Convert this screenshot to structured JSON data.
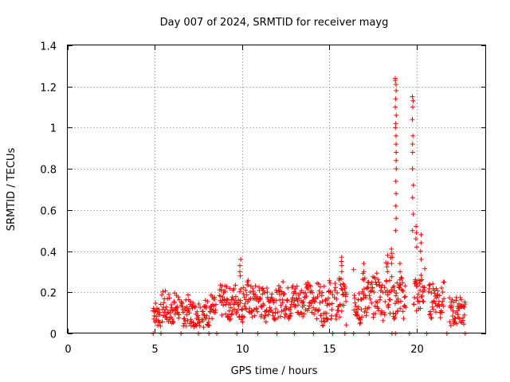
{
  "chart_data": {
    "type": "scatter",
    "title": "Day 007 of 2024, SRMTID for receiver mayg",
    "xlabel": "GPS time / hours",
    "ylabel": "SRMTID / TECUs",
    "xlim": [
      0,
      24
    ],
    "ylim": [
      0,
      1.4
    ],
    "xticks": [
      0,
      5,
      10,
      15,
      20
    ],
    "xtick_labels": [
      "0",
      "5",
      "10",
      "15",
      "20"
    ],
    "yticks": [
      0,
      0.2,
      0.4,
      0.6,
      0.8,
      1.0,
      1.2,
      1.4
    ],
    "ytick_labels": [
      "0",
      "0.2",
      "0.4",
      "0.6",
      "0.8",
      "1",
      "1.2",
      "1.4"
    ],
    "grid": true,
    "marker": "plus",
    "color": "#ff0000",
    "sampling_interval_hours": 0.02,
    "series": [
      {
        "name": "SRMTID",
        "segments": [
          {
            "start": 4.9,
            "end": 5.35,
            "base": 0.1,
            "amp": 0.06
          },
          {
            "start": 5.4,
            "end": 6.4,
            "base": 0.12,
            "amp": 0.08
          },
          {
            "start": 6.5,
            "end": 7.6,
            "base": 0.1,
            "amp": 0.07
          },
          {
            "start": 7.7,
            "end": 8.5,
            "base": 0.11,
            "amp": 0.07
          },
          {
            "start": 8.7,
            "end": 9.7,
            "base": 0.15,
            "amp": 0.08
          },
          {
            "start": 9.75,
            "end": 10.9,
            "base": 0.16,
            "amp": 0.09
          },
          {
            "start": 10.95,
            "end": 12.0,
            "base": 0.15,
            "amp": 0.08
          },
          {
            "start": 12.05,
            "end": 13.3,
            "base": 0.16,
            "amp": 0.08
          },
          {
            "start": 13.35,
            "end": 14.2,
            "base": 0.17,
            "amp": 0.08
          },
          {
            "start": 14.25,
            "end": 15.2,
            "base": 0.15,
            "amp": 0.09
          },
          {
            "start": 15.3,
            "end": 16.0,
            "base": 0.16,
            "amp": 0.1
          },
          {
            "start": 16.4,
            "end": 17.3,
            "base": 0.17,
            "amp": 0.11
          },
          {
            "start": 17.35,
            "end": 18.1,
            "base": 0.18,
            "amp": 0.1
          },
          {
            "start": 18.15,
            "end": 18.6,
            "base": 0.22,
            "amp": 0.14
          },
          {
            "start": 18.65,
            "end": 19.4,
            "base": 0.17,
            "amp": 0.09
          },
          {
            "start": 19.85,
            "end": 20.5,
            "base": 0.2,
            "amp": 0.1
          },
          {
            "start": 20.7,
            "end": 21.6,
            "base": 0.17,
            "amp": 0.08
          },
          {
            "start": 21.9,
            "end": 22.8,
            "base": 0.11,
            "amp": 0.07
          }
        ],
        "spikes": [
          {
            "x": 9.9,
            "y": [
              0.28,
              0.3,
              0.33,
              0.36
            ]
          },
          {
            "x": 15.7,
            "y": [
              0.3,
              0.33,
              0.35,
              0.37
            ]
          },
          {
            "x": 17.0,
            "y": [
              0.26,
              0.3,
              0.34
            ]
          },
          {
            "x": 18.35,
            "y": [
              0.3,
              0.34,
              0.38
            ]
          },
          {
            "x": 18.6,
            "y": [
              0.34,
              0.37,
              0.39,
              0.41
            ]
          },
          {
            "x": 18.82,
            "y": [
              0.5,
              0.56,
              0.62,
              0.68,
              0.74,
              0.8,
              0.84,
              0.88,
              0.92,
              0.96,
              1.0,
              1.02,
              1.06,
              1.1,
              1.14,
              1.18,
              1.21,
              1.23,
              1.24
            ]
          },
          {
            "x": 19.05,
            "y": [
              0.26,
              0.3,
              0.34
            ]
          },
          {
            "x": 19.8,
            "y": [
              0.5,
              0.58,
              0.66,
              0.72,
              0.8,
              0.88,
              0.92,
              0.96,
              1.04,
              1.1,
              1.13,
              1.15
            ]
          },
          {
            "x": 20.0,
            "y": [
              0.42,
              0.46,
              0.49,
              0.52
            ]
          },
          {
            "x": 20.25,
            "y": [
              0.36,
              0.4,
              0.44,
              0.48
            ]
          }
        ],
        "zero_markers": [
          4.9,
          5.35,
          6.5,
          7.5,
          8.1,
          8.55,
          9.7,
          10.9,
          12.0,
          13.0,
          14.1,
          15.2,
          15.9,
          16.4,
          17.3,
          18.6,
          18.8,
          19.6,
          20.6,
          21.75,
          22.8
        ]
      }
    ]
  }
}
